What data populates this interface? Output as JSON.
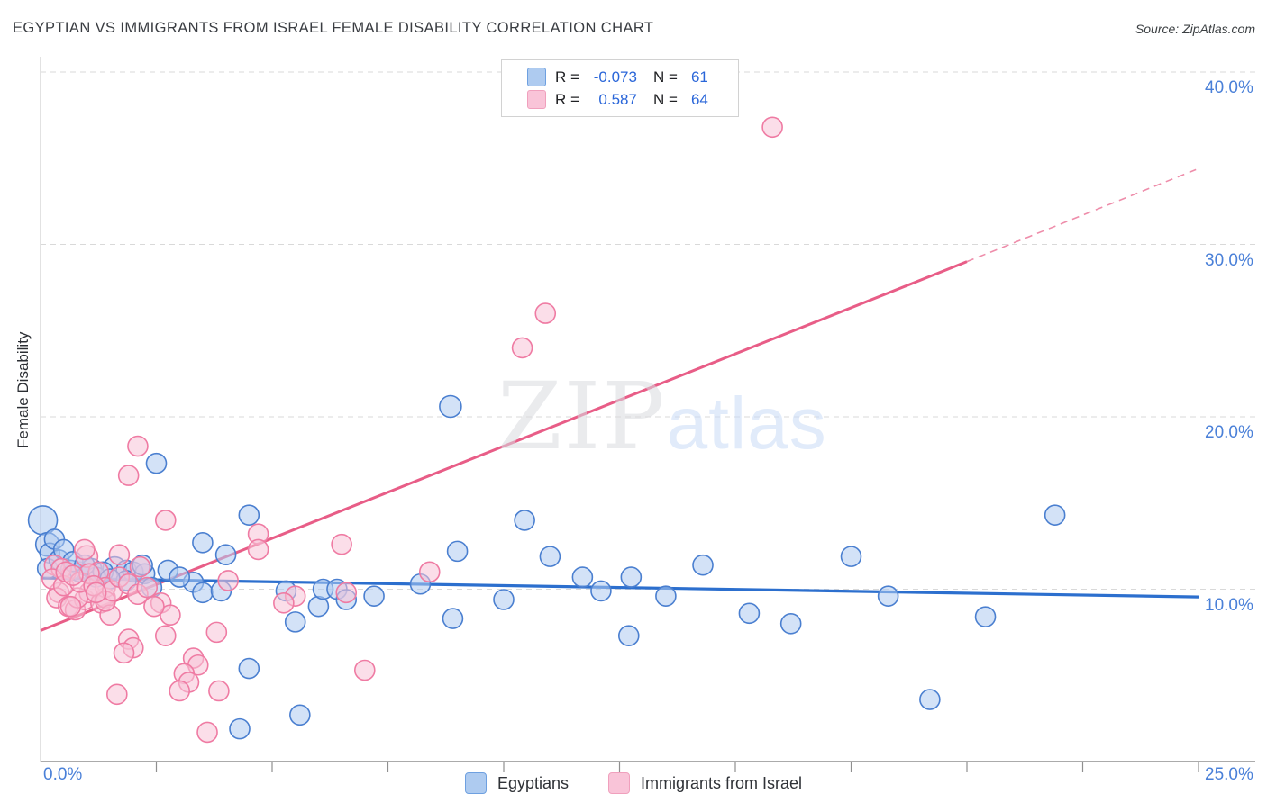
{
  "header": {
    "title": "EGYPTIAN VS IMMIGRANTS FROM ISRAEL FEMALE DISABILITY CORRELATION CHART",
    "source": "Source: ZipAtlas.com"
  },
  "watermark": {
    "zip": "ZIP",
    "atlas": "atlas"
  },
  "legend_box": {
    "rows": [
      {
        "series": "Egyptians",
        "r_label": "R =",
        "r_value": "-0.073",
        "n_label": "N =",
        "n_value": "61"
      },
      {
        "series": "Immigrants from Israel",
        "r_label": "R =",
        "r_value": "0.587",
        "n_label": "N =",
        "n_value": "64"
      }
    ]
  },
  "bottom_legend": {
    "items": [
      {
        "label": "Egyptians",
        "color": "#aecbf0",
        "border": "#6ea0e0"
      },
      {
        "label": "Immigrants from Israel",
        "color": "#f9c4d8",
        "border": "#f0a0bd"
      }
    ]
  },
  "chart_data": {
    "type": "scatter",
    "title": "Egyptian vs Immigrants from Israel Female Disability",
    "xlabel": "",
    "ylabel": "Female Disability",
    "xlim": [
      0,
      25
    ],
    "ylim": [
      0,
      41
    ],
    "grid": "horizontal-dashed",
    "x_axis": {
      "min_label": "0.0%",
      "max_label": "25.0%",
      "minor_tick_step_pct": 2.5
    },
    "y_axis": {
      "ticks": [
        {
          "value": 40,
          "label": "40.0%"
        },
        {
          "value": 30,
          "label": "30.0%"
        },
        {
          "value": 20,
          "label": "20.0%"
        },
        {
          "value": 10,
          "label": "10.0%"
        }
      ],
      "side": "right"
    },
    "series": [
      {
        "name": "Egyptians",
        "R": -0.073,
        "N": 61,
        "fill": "rgba(174,203,240,0.55)",
        "stroke": "#4a7fd0",
        "trend_color": "#2c6fce",
        "trend": {
          "x1": 0,
          "y1": 10.65,
          "x2": 25,
          "y2": 9.55
        },
        "points": [
          [
            0.05,
            14.0,
            16
          ],
          [
            0.15,
            12.6,
            13
          ],
          [
            0.2,
            12.1
          ],
          [
            0.15,
            11.2
          ],
          [
            0.4,
            11.7
          ],
          [
            0.65,
            11.1
          ],
          [
            0.85,
            11.0
          ],
          [
            1.1,
            11.2
          ],
          [
            1.2,
            10.7
          ],
          [
            1.6,
            11.2,
            13
          ],
          [
            1.85,
            11.1
          ],
          [
            2.0,
            11.0
          ],
          [
            2.25,
            10.9
          ],
          [
            1.85,
            10.5
          ],
          [
            2.2,
            11.4
          ],
          [
            2.4,
            10.1
          ],
          [
            2.75,
            11.1
          ],
          [
            3.3,
            10.4
          ],
          [
            3.5,
            9.8
          ],
          [
            3.9,
            9.9
          ],
          [
            2.5,
            17.3
          ],
          [
            4.5,
            14.3
          ],
          [
            3.5,
            12.7
          ],
          [
            4.0,
            12.0
          ],
          [
            5.3,
            9.9
          ],
          [
            5.5,
            8.1
          ],
          [
            6.0,
            9.0
          ],
          [
            6.1,
            10.0
          ],
          [
            6.4,
            10.0
          ],
          [
            6.6,
            9.4
          ],
          [
            7.2,
            9.6
          ],
          [
            4.5,
            5.4
          ],
          [
            4.3,
            1.9
          ],
          [
            5.6,
            2.7
          ],
          [
            8.2,
            10.3
          ],
          [
            8.85,
            20.6,
            12
          ],
          [
            9.0,
            12.2
          ],
          [
            8.9,
            8.3
          ],
          [
            10.0,
            9.4
          ],
          [
            10.45,
            14.0
          ],
          [
            11.0,
            11.9
          ],
          [
            11.7,
            10.7
          ],
          [
            12.1,
            9.9
          ],
          [
            12.75,
            10.7
          ],
          [
            12.7,
            7.3
          ],
          [
            13.5,
            9.6
          ],
          [
            14.3,
            11.4
          ],
          [
            15.3,
            8.6
          ],
          [
            16.2,
            8.0
          ],
          [
            17.5,
            11.9
          ],
          [
            18.3,
            9.6
          ],
          [
            19.2,
            3.6
          ],
          [
            20.4,
            8.4
          ],
          [
            21.9,
            14.3
          ],
          [
            0.3,
            12.9
          ],
          [
            0.5,
            12.3
          ],
          [
            0.7,
            11.6
          ],
          [
            0.95,
            11.4
          ],
          [
            1.35,
            11.0
          ],
          [
            1.5,
            10.6
          ],
          [
            3.0,
            10.7
          ]
        ]
      },
      {
        "name": "Immigrants from Israel",
        "R": 0.587,
        "N": 64,
        "fill": "rgba(248,195,215,0.55)",
        "stroke": "#ef7ba3",
        "trend_color": "#e85d87",
        "trend": {
          "x1": 0,
          "y1": 7.6,
          "x2": 20,
          "y2": 29.0
        },
        "trend_dashed": {
          "x1": 20,
          "y1": 29.0,
          "x2": 25,
          "y2": 34.4
        },
        "points": [
          [
            15.8,
            36.8
          ],
          [
            10.9,
            26.0
          ],
          [
            10.4,
            24.0
          ],
          [
            2.1,
            18.3
          ],
          [
            1.9,
            16.6
          ],
          [
            2.7,
            14.0
          ],
          [
            4.7,
            13.2
          ],
          [
            4.7,
            12.3
          ],
          [
            1.7,
            12.0
          ],
          [
            6.5,
            12.6
          ],
          [
            8.4,
            11.0
          ],
          [
            7.0,
            5.3
          ],
          [
            0.4,
            9.8
          ],
          [
            0.35,
            9.5
          ],
          [
            0.6,
            9.0
          ],
          [
            0.75,
            8.8
          ],
          [
            0.95,
            9.4
          ],
          [
            1.05,
            9.8
          ],
          [
            1.3,
            9.2
          ],
          [
            1.4,
            9.5
          ],
          [
            1.5,
            8.5
          ],
          [
            2.6,
            9.2
          ],
          [
            2.8,
            8.5
          ],
          [
            1.65,
            3.9
          ],
          [
            1.9,
            7.1
          ],
          [
            2.0,
            6.6
          ],
          [
            1.8,
            6.3
          ],
          [
            2.7,
            7.3
          ],
          [
            3.3,
            6.0
          ],
          [
            3.4,
            5.6
          ],
          [
            3.1,
            5.1
          ],
          [
            3.2,
            4.6
          ],
          [
            3.0,
            4.1
          ],
          [
            3.8,
            7.5
          ],
          [
            3.85,
            4.1
          ],
          [
            3.6,
            1.7
          ],
          [
            4.05,
            10.5
          ],
          [
            5.5,
            9.6
          ],
          [
            6.6,
            9.8
          ],
          [
            0.3,
            11.4
          ],
          [
            0.45,
            11.2
          ],
          [
            1.0,
            11.9,
            12
          ],
          [
            1.25,
            11.0
          ],
          [
            1.4,
            10.1
          ],
          [
            0.95,
            12.3
          ],
          [
            0.8,
            9.5
          ],
          [
            0.65,
            9.0
          ],
          [
            1.4,
            9.3
          ],
          [
            5.25,
            9.2
          ],
          [
            0.25,
            10.6
          ],
          [
            0.5,
            10.2
          ],
          [
            0.55,
            11.0
          ],
          [
            0.85,
            10.4
          ],
          [
            1.05,
            10.9
          ],
          [
            1.15,
            10.2
          ],
          [
            1.55,
            9.9
          ],
          [
            1.7,
            10.7
          ],
          [
            1.9,
            10.3
          ],
          [
            2.1,
            9.7
          ],
          [
            2.3,
            10.1
          ],
          [
            2.45,
            9.0
          ],
          [
            0.7,
            10.8
          ],
          [
            1.2,
            9.8
          ],
          [
            2.15,
            11.3
          ]
        ]
      }
    ]
  }
}
